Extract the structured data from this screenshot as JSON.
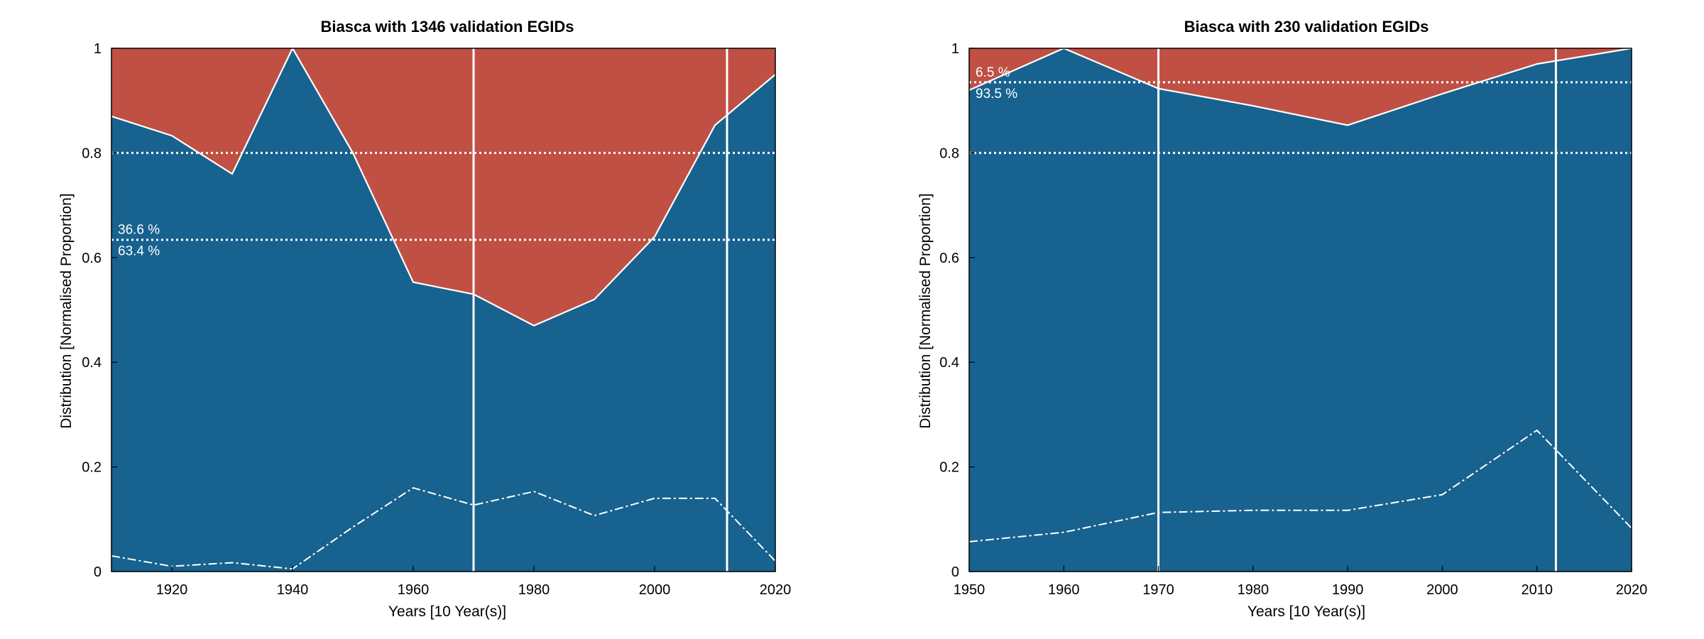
{
  "colors": {
    "blue": "#17628F",
    "red": "#C05044",
    "line": "#FFFFFF",
    "frame": "#000000"
  },
  "chart_data": [
    {
      "type": "area",
      "title": "Biasca with 1346 validation EGIDs",
      "xlabel": "Years [10 Year(s)]",
      "ylabel": "Distribution [Normalised Proportion]",
      "xlim": [
        1910,
        2020
      ],
      "ylim": [
        0,
        1
      ],
      "xticks": [
        "1920",
        "1940",
        "1960",
        "1980",
        "2000",
        "2020"
      ],
      "yticks": [
        "0",
        "0.2",
        "0.4",
        "0.6",
        "0.8",
        "1"
      ],
      "grid": false,
      "x": [
        1910,
        1920,
        1930,
        1940,
        1950,
        1960,
        1970,
        1980,
        1990,
        2000,
        2010,
        2020
      ],
      "boundary": [
        0.87,
        0.833,
        0.76,
        1.0,
        0.8,
        0.553,
        0.53,
        0.47,
        0.52,
        0.64,
        0.853,
        0.95
      ],
      "dashed_line": [
        0.03,
        0.01,
        0.017,
        0.005,
        0.085,
        0.16,
        0.127,
        0.153,
        0.107,
        0.14,
        0.14,
        0.02
      ],
      "hlines_dotted": [
        0.8,
        0.634
      ],
      "vlines": [
        1970,
        2012
      ],
      "percent_labels": [
        "36.6 %",
        "63.4 %"
      ]
    },
    {
      "type": "area",
      "title": "Biasca with 230 validation EGIDs",
      "xlabel": "Years [10 Year(s)]",
      "ylabel": "Distribution [Normalised Proportion]",
      "xlim": [
        1950,
        2020
      ],
      "ylim": [
        0,
        1
      ],
      "xticks": [
        "1950",
        "1960",
        "1970",
        "1980",
        "1990",
        "2000",
        "2010",
        "2020"
      ],
      "yticks": [
        "0",
        "0.2",
        "0.4",
        "0.6",
        "0.8",
        "1"
      ],
      "grid": false,
      "x": [
        1950,
        1960,
        1970,
        1980,
        1990,
        2000,
        2010,
        2020
      ],
      "boundary": [
        0.92,
        1.0,
        0.923,
        0.89,
        0.853,
        0.913,
        0.97,
        1.0
      ],
      "dashed_line": [
        0.057,
        0.075,
        0.113,
        0.117,
        0.117,
        0.147,
        0.27,
        0.083
      ],
      "hlines_dotted": [
        0.8,
        0.935
      ],
      "vlines": [
        1970,
        2012
      ],
      "percent_labels": [
        "6.5 %",
        "93.5 %"
      ]
    }
  ]
}
